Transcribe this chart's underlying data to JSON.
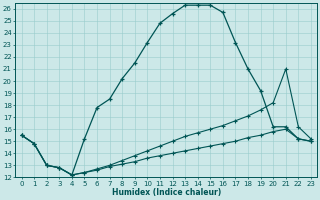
{
  "xlabel": "Humidex (Indice chaleur)",
  "background_color": "#cce8e8",
  "grid_color": "#99cccc",
  "line_color": "#005555",
  "line1_x": [
    0,
    1,
    2,
    3,
    4,
    5,
    6,
    7,
    8,
    9,
    10,
    11,
    12,
    13,
    14,
    15,
    16,
    17,
    18,
    19,
    20,
    21,
    22,
    23
  ],
  "line1_y": [
    15.5,
    14.8,
    13.0,
    12.8,
    12.2,
    15.2,
    17.8,
    18.5,
    20.2,
    21.5,
    23.2,
    24.8,
    25.6,
    26.3,
    26.3,
    26.3,
    25.7,
    23.2,
    21.0,
    19.2,
    16.2,
    16.2,
    15.2,
    15.0
  ],
  "line2_x": [
    0,
    1,
    2,
    3,
    4,
    5,
    6,
    7,
    8,
    9,
    10,
    11,
    12,
    13,
    14,
    15,
    16,
    17,
    18,
    19,
    20,
    21,
    22,
    23
  ],
  "line2_y": [
    15.5,
    14.8,
    13.0,
    12.8,
    12.2,
    12.4,
    12.6,
    12.9,
    13.1,
    13.3,
    13.6,
    13.8,
    14.0,
    14.2,
    14.4,
    14.6,
    14.8,
    15.0,
    15.3,
    15.5,
    15.8,
    16.0,
    15.2,
    15.0
  ],
  "line3_x": [
    0,
    1,
    2,
    3,
    4,
    5,
    6,
    7,
    8,
    9,
    10,
    11,
    12,
    13,
    14,
    15,
    16,
    17,
    18,
    19,
    20,
    21,
    22,
    23
  ],
  "line3_y": [
    15.5,
    14.8,
    13.0,
    12.8,
    12.2,
    12.4,
    12.7,
    13.0,
    13.4,
    13.8,
    14.2,
    14.6,
    15.0,
    15.4,
    15.7,
    16.0,
    16.3,
    16.7,
    17.1,
    17.6,
    18.2,
    21.0,
    16.2,
    15.2
  ],
  "xlim": [
    -0.5,
    23.5
  ],
  "ylim": [
    12,
    26.5
  ],
  "xticks": [
    0,
    1,
    2,
    3,
    4,
    5,
    6,
    7,
    8,
    9,
    10,
    11,
    12,
    13,
    14,
    15,
    16,
    17,
    18,
    19,
    20,
    21,
    22,
    23
  ],
  "yticks": [
    12,
    13,
    14,
    15,
    16,
    17,
    18,
    19,
    20,
    21,
    22,
    23,
    24,
    25,
    26
  ]
}
